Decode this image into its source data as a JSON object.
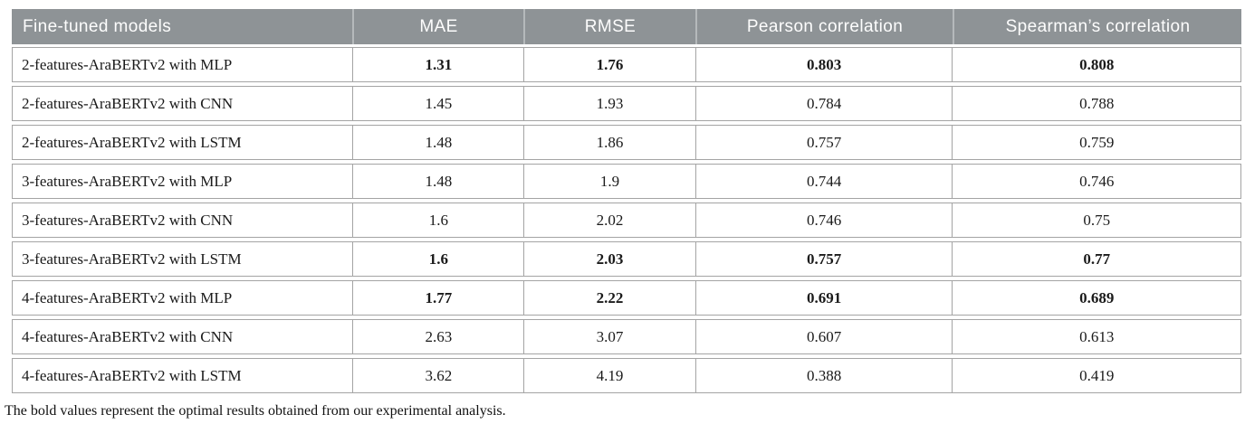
{
  "colors": {
    "header_bg": "#8e9396",
    "header_text": "#fdfdfd",
    "header_divider": "#b5b9bb",
    "row_border": "#a4a4a4",
    "body_text": "#1a1a1a",
    "background": "#ffffff"
  },
  "table": {
    "columns": [
      {
        "label": "Fine-tuned models"
      },
      {
        "label": "MAE"
      },
      {
        "label": "RMSE"
      },
      {
        "label": "Pearson correlation"
      },
      {
        "label": "Spearman’s correlation"
      }
    ],
    "rows": [
      {
        "cells": [
          "2-features-AraBERTv2 with MLP",
          "1.31",
          "1.76",
          "0.803",
          "0.808"
        ],
        "bold": true
      },
      {
        "cells": [
          "2-features-AraBERTv2 with CNN",
          "1.45",
          "1.93",
          "0.784",
          "0.788"
        ],
        "bold": false
      },
      {
        "cells": [
          "2-features-AraBERTv2 with LSTM",
          "1.48",
          "1.86",
          "0.757",
          "0.759"
        ],
        "bold": false
      },
      {
        "cells": [
          "3-features-AraBERTv2 with MLP",
          "1.48",
          "1.9",
          "0.744",
          "0.746"
        ],
        "bold": false
      },
      {
        "cells": [
          "3-features-AraBERTv2 with CNN",
          "1.6",
          "2.02",
          "0.746",
          "0.75"
        ],
        "bold": false
      },
      {
        "cells": [
          "3-features-AraBERTv2 with LSTM",
          "1.6",
          "2.03",
          "0.757",
          "0.77"
        ],
        "bold": true
      },
      {
        "cells": [
          "4-features-AraBERTv2 with MLP",
          "1.77",
          "2.22",
          "0.691",
          "0.689"
        ],
        "bold": true
      },
      {
        "cells": [
          "4-features-AraBERTv2 with CNN",
          "2.63",
          "3.07",
          "0.607",
          "0.613"
        ],
        "bold": false
      },
      {
        "cells": [
          "4-features-AraBERTv2 with LSTM",
          "3.62",
          "4.19",
          "0.388",
          "0.419"
        ],
        "bold": false
      }
    ],
    "footnote": "The bold values represent the optimal results obtained from our experimental analysis."
  }
}
